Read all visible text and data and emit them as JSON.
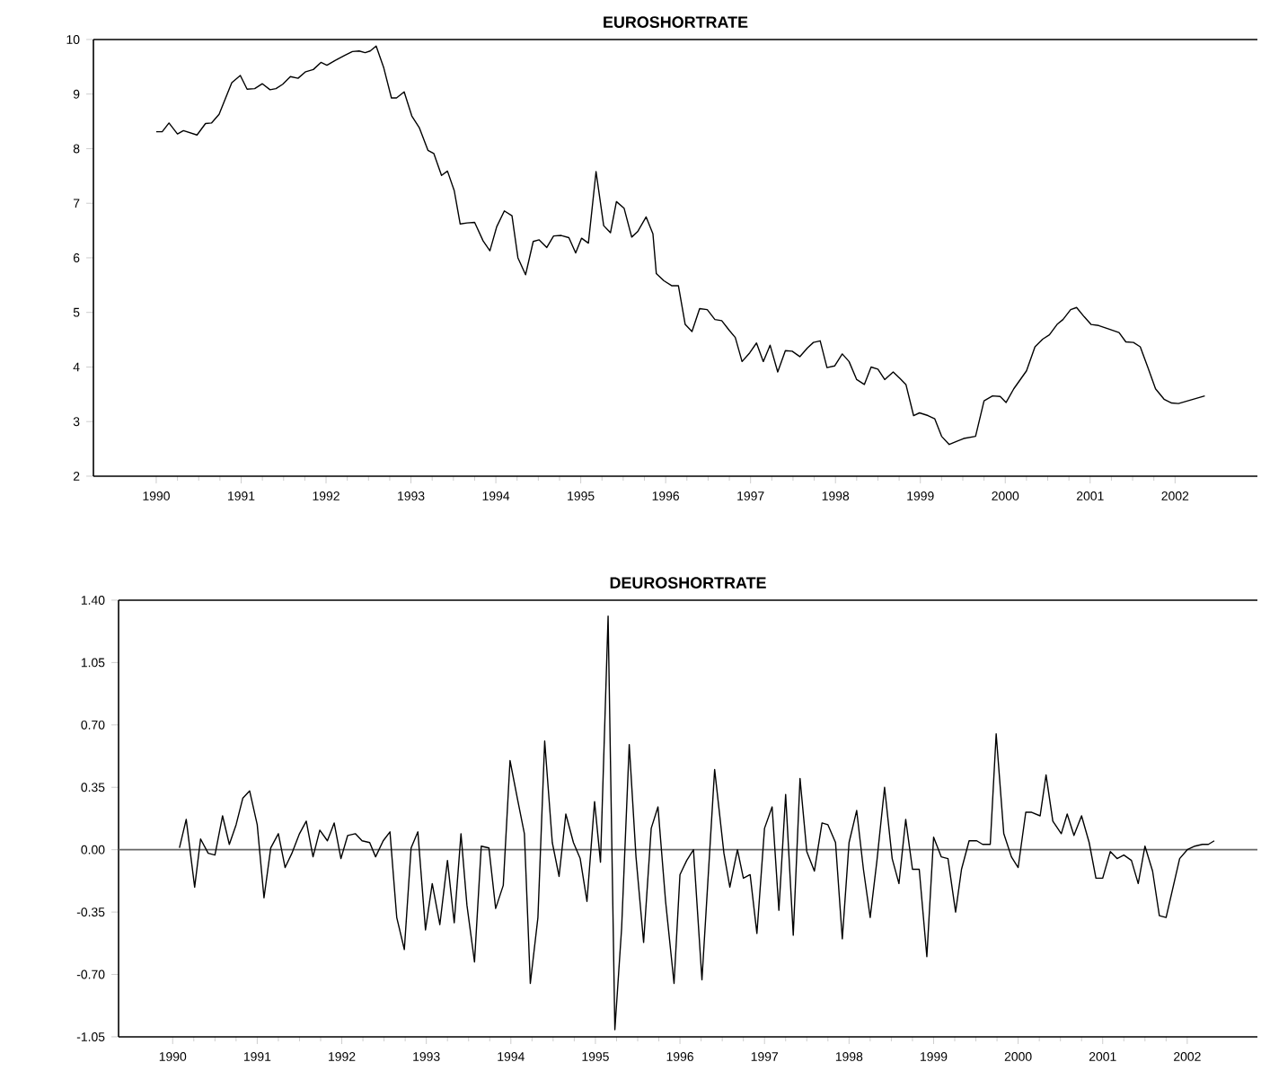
{
  "chart_data": [
    {
      "type": "line",
      "title": "EUROSHORTRATE",
      "color": "#000000",
      "x": [
        1990.0,
        1990.07,
        1990.15,
        1990.25,
        1990.32,
        1990.48,
        1990.58,
        1990.65,
        1990.74,
        1990.89,
        1990.99,
        1991.07,
        1991.16,
        1991.25,
        1991.34,
        1991.41,
        1991.49,
        1991.58,
        1991.67,
        1991.76,
        1991.85,
        1991.94,
        1992.01,
        1992.11,
        1992.22,
        1992.31,
        1992.39,
        1992.46,
        1992.52,
        1992.59,
        1992.68,
        1992.77,
        1992.83,
        1992.92,
        1993.01,
        1993.1,
        1993.2,
        1993.27,
        1993.36,
        1993.43,
        1993.51,
        1993.58,
        1993.66,
        1993.75,
        1993.85,
        1993.93,
        1994.01,
        1994.1,
        1994.19,
        1994.26,
        1994.35,
        1994.44,
        1994.51,
        1994.6,
        1994.68,
        1994.77,
        1994.86,
        1994.94,
        1995.01,
        1995.09,
        1995.18,
        1995.27,
        1995.35,
        1995.42,
        1995.51,
        1995.6,
        1995.67,
        1995.77,
        1995.85,
        1995.89,
        1995.98,
        1996.07,
        1996.15,
        1996.23,
        1996.31,
        1996.4,
        1996.49,
        1996.58,
        1996.66,
        1996.75,
        1996.82,
        1996.9,
        1996.99,
        1997.07,
        1997.15,
        1997.23,
        1997.32,
        1997.41,
        1997.49,
        1997.58,
        1997.67,
        1997.74,
        1997.82,
        1997.9,
        1997.99,
        1998.08,
        1998.16,
        1998.25,
        1998.34,
        1998.42,
        1998.5,
        1998.58,
        1998.68,
        1998.76,
        1998.83,
        1998.92,
        1998.99,
        1999.09,
        1999.17,
        1999.25,
        1999.34,
        1999.43,
        1999.51,
        1999.65,
        1999.75,
        1999.85,
        1999.94,
        2000.01,
        2000.1,
        2000.25,
        2000.35,
        2000.44,
        2000.52,
        2000.61,
        2000.68,
        2000.77,
        2000.84,
        2000.93,
        2001.01,
        2001.1,
        2001.21,
        2001.34,
        2001.42,
        2001.51,
        2001.59,
        2001.68,
        2001.77,
        2001.87,
        2001.96,
        2002.04,
        2002.35
      ],
      "values": [
        8.31,
        8.31,
        8.47,
        8.27,
        8.33,
        8.25,
        8.46,
        8.47,
        8.63,
        9.21,
        9.34,
        9.09,
        9.1,
        9.19,
        9.08,
        9.1,
        9.18,
        9.32,
        9.29,
        9.41,
        9.45,
        9.58,
        9.53,
        9.62,
        9.71,
        9.78,
        9.79,
        9.76,
        9.79,
        9.88,
        9.48,
        8.93,
        8.93,
        9.04,
        8.6,
        8.38,
        7.97,
        7.91,
        7.51,
        7.59,
        7.23,
        6.62,
        6.64,
        6.65,
        6.31,
        6.13,
        6.57,
        6.86,
        6.77,
        6.0,
        5.69,
        6.3,
        6.33,
        6.19,
        6.4,
        6.41,
        6.37,
        6.09,
        6.36,
        6.27,
        7.58,
        6.59,
        6.46,
        7.03,
        6.91,
        6.38,
        6.48,
        6.75,
        6.44,
        5.71,
        5.58,
        5.49,
        5.49,
        4.78,
        4.65,
        5.07,
        5.05,
        4.87,
        4.85,
        4.67,
        4.54,
        4.1,
        4.26,
        4.44,
        4.1,
        4.4,
        3.91,
        4.3,
        4.29,
        4.19,
        4.35,
        4.45,
        4.48,
        3.99,
        4.02,
        4.24,
        4.1,
        3.77,
        3.68,
        4.0,
        3.96,
        3.77,
        3.91,
        3.79,
        3.68,
        3.11,
        3.16,
        3.11,
        3.05,
        2.73,
        2.58,
        2.64,
        2.69,
        2.73,
        3.38,
        3.47,
        3.46,
        3.35,
        3.6,
        3.93,
        4.37,
        4.51,
        4.59,
        4.78,
        4.87,
        5.05,
        5.09,
        4.92,
        4.78,
        4.76,
        4.7,
        4.63,
        4.46,
        4.45,
        4.37,
        3.99,
        3.6,
        3.41,
        3.34,
        3.33,
        3.47
      ],
      "xlim": [
        1989.26,
        2002.97
      ],
      "xticks": [
        1990,
        1991,
        1992,
        1993,
        1994,
        1995,
        1996,
        1997,
        1998,
        1999,
        2000,
        2001,
        2002
      ],
      "ylim": [
        2,
        10
      ],
      "yticks": [
        2,
        3,
        4,
        5,
        6,
        7,
        8,
        9,
        10
      ]
    },
    {
      "type": "line",
      "title": "DEUROSHORTRATE",
      "color": "#000000",
      "x": [
        1990.08,
        1990.16,
        1990.26,
        1990.33,
        1990.42,
        1990.5,
        1990.59,
        1990.67,
        1990.75,
        1990.83,
        1990.91,
        1991.0,
        1991.08,
        1991.16,
        1991.25,
        1991.33,
        1991.41,
        1991.5,
        1991.58,
        1991.66,
        1991.74,
        1991.83,
        1991.91,
        1991.99,
        1992.07,
        1992.16,
        1992.24,
        1992.33,
        1992.4,
        1992.49,
        1992.57,
        1992.65,
        1992.74,
        1992.82,
        1992.9,
        1992.99,
        1993.07,
        1993.16,
        1993.25,
        1993.33,
        1993.41,
        1993.48,
        1993.57,
        1993.65,
        1993.74,
        1993.82,
        1993.91,
        1993.99,
        1994.08,
        1994.16,
        1994.23,
        1994.32,
        1994.4,
        1994.49,
        1994.57,
        1994.65,
        1994.74,
        1994.82,
        1994.9,
        1994.99,
        1995.06,
        1995.15,
        1995.23,
        1995.31,
        1995.4,
        1995.48,
        1995.57,
        1995.66,
        1995.74,
        1995.83,
        1995.93,
        1996.0,
        1996.08,
        1996.16,
        1996.26,
        1996.41,
        1996.52,
        1996.59,
        1996.68,
        1996.75,
        1996.83,
        1996.91,
        1997.0,
        1997.09,
        1997.17,
        1997.25,
        1997.34,
        1997.42,
        1997.5,
        1997.59,
        1997.68,
        1997.75,
        1997.84,
        1997.92,
        1998.0,
        1998.09,
        1998.17,
        1998.25,
        1998.33,
        1998.42,
        1998.51,
        1998.59,
        1998.67,
        1998.75,
        1998.83,
        1998.92,
        1999.0,
        1999.09,
        1999.17,
        1999.26,
        1999.33,
        1999.42,
        1999.51,
        1999.58,
        1999.67,
        1999.74,
        1999.83,
        1999.92,
        2000.0,
        2000.09,
        2000.16,
        2000.26,
        2000.33,
        2000.41,
        2000.51,
        2000.58,
        2000.66,
        2000.75,
        2000.84,
        2000.92,
        2001.0,
        2001.09,
        2001.17,
        2001.25,
        2001.34,
        2001.42,
        2001.5,
        2001.59,
        2001.67,
        2001.75,
        2001.91,
        2002.0,
        2002.09,
        2002.18,
        2002.25,
        2002.32
      ],
      "values": [
        0.01,
        0.17,
        -0.21,
        0.06,
        -0.02,
        -0.03,
        0.19,
        0.03,
        0.14,
        0.29,
        0.33,
        0.14,
        -0.27,
        0.01,
        0.09,
        -0.1,
        -0.02,
        0.09,
        0.16,
        -0.04,
        0.11,
        0.05,
        0.15,
        -0.05,
        0.08,
        0.09,
        0.05,
        0.04,
        -0.04,
        0.05,
        0.1,
        -0.38,
        -0.56,
        0.01,
        0.1,
        -0.45,
        -0.19,
        -0.42,
        -0.06,
        -0.41,
        0.09,
        -0.31,
        -0.63,
        0.02,
        0.01,
        -0.33,
        -0.2,
        0.5,
        0.28,
        0.09,
        -0.75,
        -0.38,
        0.61,
        0.04,
        -0.15,
        0.2,
        0.04,
        -0.05,
        -0.29,
        0.27,
        -0.07,
        1.31,
        -1.01,
        -0.44,
        0.59,
        -0.04,
        -0.52,
        0.12,
        0.24,
        -0.29,
        -0.75,
        -0.14,
        -0.06,
        0.0,
        -0.73,
        0.45,
        -0.02,
        -0.21,
        0.0,
        -0.16,
        -0.14,
        -0.47,
        0.12,
        0.24,
        -0.34,
        0.31,
        -0.48,
        0.4,
        -0.01,
        -0.12,
        0.15,
        0.14,
        0.04,
        -0.5,
        0.04,
        0.22,
        -0.11,
        -0.38,
        -0.06,
        0.35,
        -0.05,
        -0.19,
        0.17,
        -0.11,
        -0.11,
        -0.6,
        0.07,
        -0.04,
        -0.05,
        -0.35,
        -0.11,
        0.05,
        0.05,
        0.03,
        0.03,
        0.65,
        0.09,
        -0.04,
        -0.1,
        0.21,
        0.21,
        0.19,
        0.42,
        0.16,
        0.09,
        0.2,
        0.08,
        0.19,
        0.04,
        -0.16,
        -0.16,
        -0.01,
        -0.05,
        -0.03,
        -0.06,
        -0.19,
        0.02,
        -0.12,
        -0.37,
        -0.38,
        -0.05,
        0.0,
        0.02,
        0.03,
        0.03,
        0.05
      ],
      "xlim": [
        1989.36,
        2002.83
      ],
      "xticks": [
        1990,
        1991,
        1992,
        1993,
        1994,
        1995,
        1996,
        1997,
        1998,
        1999,
        2000,
        2001,
        2002
      ],
      "ylim": [
        -1.05,
        1.4
      ],
      "yticks": [
        {
          "value": -1.05,
          "label": "-1.05"
        },
        {
          "value": -0.7,
          "label": "-0.70"
        },
        {
          "value": -0.35,
          "label": "-0.35"
        },
        {
          "value": 0,
          "label": "0.00"
        },
        {
          "value": 0.35,
          "label": "0.35"
        },
        {
          "value": 0.7,
          "label": "0.70"
        },
        {
          "value": 1.05,
          "label": "1.05"
        },
        {
          "value": 1.4,
          "label": "1.40"
        }
      ],
      "ref_lines": [
        {
          "axis": "y",
          "value": 0,
          "color": "#666666"
        }
      ]
    }
  ]
}
